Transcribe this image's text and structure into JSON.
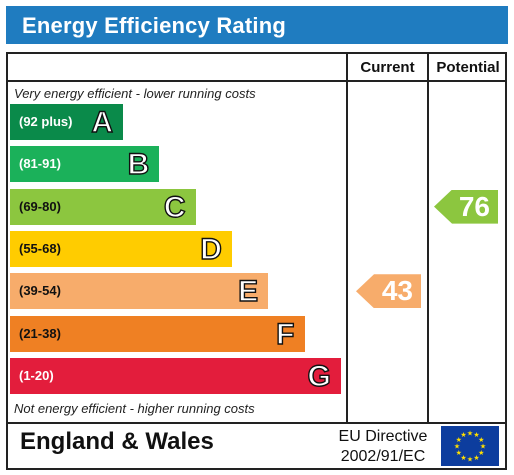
{
  "title": "Energy Efficiency Rating",
  "headers": {
    "current": "Current",
    "potential": "Potential"
  },
  "top_note": "Very energy efficient - lower running costs",
  "bottom_note": "Not energy efficient - higher running costs",
  "footer": {
    "region": "England & Wales",
    "directive_line1": "EU Directive",
    "directive_line2": "2002/91/EC",
    "flag_icon": "eu-flag-icon"
  },
  "chart_data": {
    "type": "bar",
    "title": "Energy Efficiency Rating",
    "categories": [
      "A",
      "B",
      "C",
      "D",
      "E",
      "F",
      "G"
    ],
    "ranges": [
      "(92 plus)",
      "(81-91)",
      "(69-80)",
      "(55-68)",
      "(39-54)",
      "(21-38)",
      "(1-20)"
    ],
    "colors": [
      "#0a8a4a",
      "#1bb15a",
      "#8cc63f",
      "#ffcc00",
      "#f7ac6b",
      "#ef8023",
      "#e31d3c"
    ],
    "series": [
      {
        "name": "Current",
        "value": 43,
        "band": "E",
        "color": "#f7ac6b"
      },
      {
        "name": "Potential",
        "value": 76,
        "band": "C",
        "color": "#8cc63f"
      }
    ]
  }
}
